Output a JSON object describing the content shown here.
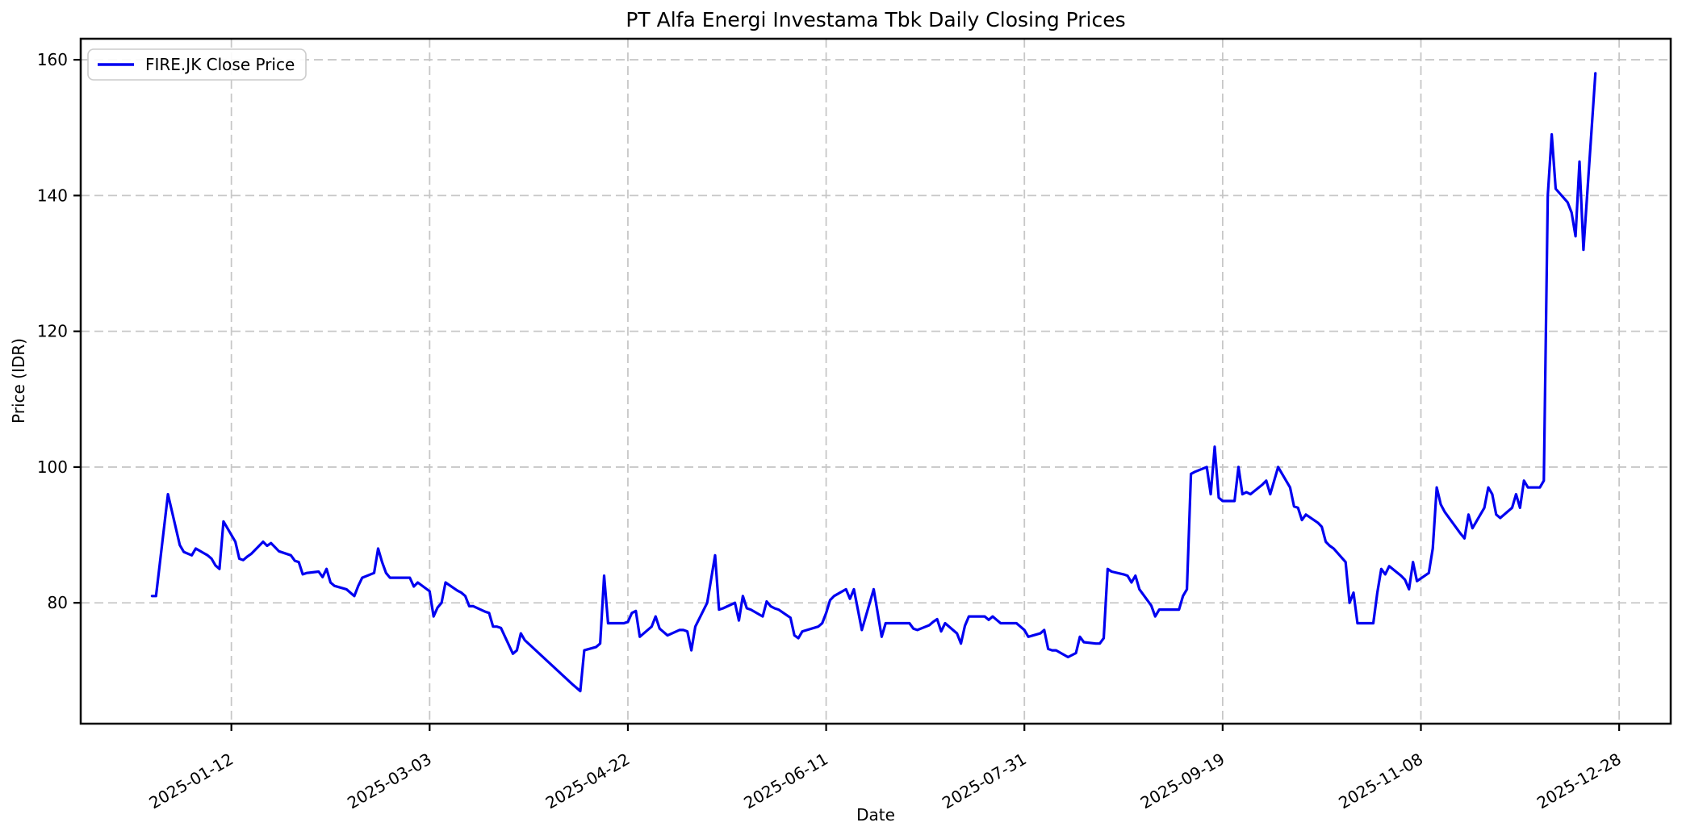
{
  "chart_data": {
    "type": "line",
    "title": "PT Alfa Energi Investama Tbk Daily Closing Prices",
    "xlabel": "Date",
    "ylabel": "Price (IDR)",
    "legend_label": "FIRE.JK Close Price",
    "legend_position": "upper left",
    "grid": true,
    "line_color": "#0000f0",
    "grid_color": "#c7c7c7",
    "spine_color": "#000000",
    "background_color": "#ffffff",
    "x_tick_labels": [
      "2025-01-12",
      "2025-03-03",
      "2025-04-22",
      "2025-06-11",
      "2025-07-31",
      "2025-09-19",
      "2025-11-08",
      "2025-12-28"
    ],
    "y_tick_labels": [
      80,
      100,
      120,
      140,
      160
    ],
    "xlim": [
      "2024-12-05",
      "2026-01-10"
    ],
    "ylim": [
      62.2,
      163.1
    ],
    "series": [
      {
        "name": "FIRE.JK Close Price",
        "color": "#0000f0",
        "points": [
          [
            "2024-12-23",
            81
          ],
          [
            "2024-12-24",
            81
          ],
          [
            "2024-12-27",
            96
          ],
          [
            "2024-12-30",
            88.5
          ],
          [
            "2024-12-31",
            87.5
          ],
          [
            "2025-01-02",
            87
          ],
          [
            "2025-01-03",
            88
          ],
          [
            "2025-01-06",
            87
          ],
          [
            "2025-01-07",
            86.5
          ],
          [
            "2025-01-08",
            85.5
          ],
          [
            "2025-01-09",
            85
          ],
          [
            "2025-01-10",
            92
          ],
          [
            "2025-01-13",
            89
          ],
          [
            "2025-01-14",
            86.5
          ],
          [
            "2025-01-15",
            86.3
          ],
          [
            "2025-01-16",
            86.8
          ],
          [
            "2025-01-17",
            87.2
          ],
          [
            "2025-01-20",
            89
          ],
          [
            "2025-01-21",
            88.4
          ],
          [
            "2025-01-22",
            88.8
          ],
          [
            "2025-01-23",
            88.2
          ],
          [
            "2025-01-24",
            87.6
          ],
          [
            "2025-01-27",
            87
          ],
          [
            "2025-01-28",
            86.2
          ],
          [
            "2025-01-29",
            86
          ],
          [
            "2025-01-30",
            84.2
          ],
          [
            "2025-01-31",
            84.4
          ],
          [
            "2025-02-03",
            84.6
          ],
          [
            "2025-02-04",
            83.8
          ],
          [
            "2025-02-05",
            85
          ],
          [
            "2025-02-06",
            83
          ],
          [
            "2025-02-07",
            82.5
          ],
          [
            "2025-02-10",
            82
          ],
          [
            "2025-02-11",
            81.5
          ],
          [
            "2025-02-12",
            81
          ],
          [
            "2025-02-13",
            82.5
          ],
          [
            "2025-02-14",
            83.7
          ],
          [
            "2025-02-17",
            84.4
          ],
          [
            "2025-02-18",
            88
          ],
          [
            "2025-02-19",
            86
          ],
          [
            "2025-02-20",
            84.4
          ],
          [
            "2025-02-21",
            83.7
          ],
          [
            "2025-02-24",
            83.7
          ],
          [
            "2025-02-25",
            83.7
          ],
          [
            "2025-02-26",
            83.7
          ],
          [
            "2025-02-27",
            82.4
          ],
          [
            "2025-02-28",
            83
          ],
          [
            "2025-03-03",
            81.7
          ],
          [
            "2025-03-04",
            78
          ],
          [
            "2025-03-05",
            79.3
          ],
          [
            "2025-03-06",
            80
          ],
          [
            "2025-03-07",
            83
          ],
          [
            "2025-03-10",
            81.8
          ],
          [
            "2025-03-11",
            81.5
          ],
          [
            "2025-03-12",
            81
          ],
          [
            "2025-03-13",
            79.5
          ],
          [
            "2025-03-14",
            79.5
          ],
          [
            "2025-03-17",
            78.7
          ],
          [
            "2025-03-18",
            78.5
          ],
          [
            "2025-03-19",
            76.5
          ],
          [
            "2025-03-20",
            76.5
          ],
          [
            "2025-03-21",
            76.3
          ],
          [
            "2025-03-24",
            72.5
          ],
          [
            "2025-03-25",
            73
          ],
          [
            "2025-03-26",
            75.5
          ],
          [
            "2025-03-27",
            74.5
          ],
          [
            "2025-04-08",
            68
          ],
          [
            "2025-04-09",
            67.5
          ],
          [
            "2025-04-10",
            67
          ],
          [
            "2025-04-11",
            73
          ],
          [
            "2025-04-14",
            73.5
          ],
          [
            "2025-04-15",
            74
          ],
          [
            "2025-04-16",
            84
          ],
          [
            "2025-04-17",
            77
          ],
          [
            "2025-04-21",
            77
          ],
          [
            "2025-04-22",
            77.2
          ],
          [
            "2025-04-23",
            78.5
          ],
          [
            "2025-04-24",
            78.8
          ],
          [
            "2025-04-25",
            75
          ],
          [
            "2025-04-28",
            76.5
          ],
          [
            "2025-04-29",
            78
          ],
          [
            "2025-04-30",
            76.2
          ],
          [
            "2025-05-02",
            75.2
          ],
          [
            "2025-05-05",
            76
          ],
          [
            "2025-05-06",
            76
          ],
          [
            "2025-05-07",
            75.8
          ],
          [
            "2025-05-08",
            73
          ],
          [
            "2025-05-09",
            76.5
          ],
          [
            "2025-05-12",
            80
          ],
          [
            "2025-05-13",
            83.5
          ],
          [
            "2025-05-14",
            87
          ],
          [
            "2025-05-15",
            79
          ],
          [
            "2025-05-16",
            79.2
          ],
          [
            "2025-05-19",
            80
          ],
          [
            "2025-05-20",
            77.4
          ],
          [
            "2025-05-21",
            81
          ],
          [
            "2025-05-22",
            79.2
          ],
          [
            "2025-05-23",
            79
          ],
          [
            "2025-05-26",
            78
          ],
          [
            "2025-05-27",
            80.2
          ],
          [
            "2025-05-28",
            79.5
          ],
          [
            "2025-05-29",
            79.2
          ],
          [
            "2025-05-30",
            79
          ],
          [
            "2025-06-02",
            77.8
          ],
          [
            "2025-06-03",
            75.2
          ],
          [
            "2025-06-04",
            74.8
          ],
          [
            "2025-06-05",
            75.8
          ],
          [
            "2025-06-09",
            76.5
          ],
          [
            "2025-06-10",
            77
          ],
          [
            "2025-06-11",
            78.5
          ],
          [
            "2025-06-12",
            80.4
          ],
          [
            "2025-06-13",
            81
          ],
          [
            "2025-06-16",
            82
          ],
          [
            "2025-06-17",
            80.6
          ],
          [
            "2025-06-18",
            82
          ],
          [
            "2025-06-19",
            79
          ],
          [
            "2025-06-20",
            76
          ],
          [
            "2025-06-23",
            82
          ],
          [
            "2025-06-24",
            78.5
          ],
          [
            "2025-06-25",
            75
          ],
          [
            "2025-06-26",
            77
          ],
          [
            "2025-06-30",
            77
          ],
          [
            "2025-07-01",
            77
          ],
          [
            "2025-07-02",
            77
          ],
          [
            "2025-07-03",
            76.2
          ],
          [
            "2025-07-04",
            76
          ],
          [
            "2025-07-07",
            76.7
          ],
          [
            "2025-07-08",
            77.2
          ],
          [
            "2025-07-09",
            77.6
          ],
          [
            "2025-07-10",
            75.8
          ],
          [
            "2025-07-11",
            77
          ],
          [
            "2025-07-14",
            75.5
          ],
          [
            "2025-07-15",
            74
          ],
          [
            "2025-07-16",
            76.6
          ],
          [
            "2025-07-17",
            78
          ],
          [
            "2025-07-18",
            78
          ],
          [
            "2025-07-21",
            78
          ],
          [
            "2025-07-22",
            77.5
          ],
          [
            "2025-07-23",
            78
          ],
          [
            "2025-07-24",
            77.5
          ],
          [
            "2025-07-25",
            77
          ],
          [
            "2025-07-28",
            77
          ],
          [
            "2025-07-29",
            77
          ],
          [
            "2025-07-30",
            76.5
          ],
          [
            "2025-07-31",
            76
          ],
          [
            "2025-08-01",
            75
          ],
          [
            "2025-08-04",
            75.5
          ],
          [
            "2025-08-05",
            76
          ],
          [
            "2025-08-06",
            73.2
          ],
          [
            "2025-08-07",
            73
          ],
          [
            "2025-08-08",
            73
          ],
          [
            "2025-08-11",
            72
          ],
          [
            "2025-08-12",
            72.3
          ],
          [
            "2025-08-13",
            72.6
          ],
          [
            "2025-08-14",
            75
          ],
          [
            "2025-08-15",
            74.2
          ],
          [
            "2025-08-18",
            74
          ],
          [
            "2025-08-19",
            74
          ],
          [
            "2025-08-20",
            74.8
          ],
          [
            "2025-08-21",
            85
          ],
          [
            "2025-08-22",
            84.6
          ],
          [
            "2025-08-25",
            84.2
          ],
          [
            "2025-08-26",
            84
          ],
          [
            "2025-08-27",
            83
          ],
          [
            "2025-08-28",
            84
          ],
          [
            "2025-08-29",
            82
          ],
          [
            "2025-09-01",
            79.6
          ],
          [
            "2025-09-02",
            78
          ],
          [
            "2025-09-03",
            79
          ],
          [
            "2025-09-04",
            79
          ],
          [
            "2025-09-05",
            79
          ],
          [
            "2025-09-08",
            79
          ],
          [
            "2025-09-09",
            81
          ],
          [
            "2025-09-10",
            82
          ],
          [
            "2025-09-11",
            99
          ],
          [
            "2025-09-12",
            99.3
          ],
          [
            "2025-09-15",
            100
          ],
          [
            "2025-09-16",
            96
          ],
          [
            "2025-09-17",
            103
          ],
          [
            "2025-09-18",
            95.5
          ],
          [
            "2025-09-19",
            95
          ],
          [
            "2025-09-22",
            95
          ],
          [
            "2025-09-23",
            100
          ],
          [
            "2025-09-24",
            96
          ],
          [
            "2025-09-25",
            96.3
          ],
          [
            "2025-09-26",
            96
          ],
          [
            "2025-09-29",
            97.4
          ],
          [
            "2025-09-30",
            98
          ],
          [
            "2025-10-01",
            96
          ],
          [
            "2025-10-02",
            98
          ],
          [
            "2025-10-03",
            100
          ],
          [
            "2025-10-06",
            97
          ],
          [
            "2025-10-07",
            94.2
          ],
          [
            "2025-10-08",
            94
          ],
          [
            "2025-10-09",
            92.2
          ],
          [
            "2025-10-10",
            93
          ],
          [
            "2025-10-13",
            91.8
          ],
          [
            "2025-10-14",
            91.2
          ],
          [
            "2025-10-15",
            89
          ],
          [
            "2025-10-16",
            88.4
          ],
          [
            "2025-10-17",
            88
          ],
          [
            "2025-10-20",
            86
          ],
          [
            "2025-10-21",
            80
          ],
          [
            "2025-10-22",
            81.5
          ],
          [
            "2025-10-23",
            77
          ],
          [
            "2025-10-24",
            77
          ],
          [
            "2025-10-27",
            77
          ],
          [
            "2025-10-28",
            81.5
          ],
          [
            "2025-10-29",
            85
          ],
          [
            "2025-10-30",
            84.2
          ],
          [
            "2025-10-31",
            85.4
          ],
          [
            "2025-11-03",
            84
          ],
          [
            "2025-11-04",
            83.4
          ],
          [
            "2025-11-05",
            82
          ],
          [
            "2025-11-06",
            86
          ],
          [
            "2025-11-07",
            83.2
          ],
          [
            "2025-11-10",
            84.4
          ],
          [
            "2025-11-11",
            88
          ],
          [
            "2025-11-12",
            97
          ],
          [
            "2025-11-13",
            94.5
          ],
          [
            "2025-11-14",
            93.4
          ],
          [
            "2025-11-17",
            91
          ],
          [
            "2025-11-18",
            90.2
          ],
          [
            "2025-11-19",
            89.5
          ],
          [
            "2025-11-20",
            93
          ],
          [
            "2025-11-21",
            91
          ],
          [
            "2025-11-24",
            94
          ],
          [
            "2025-11-25",
            97
          ],
          [
            "2025-11-26",
            96
          ],
          [
            "2025-11-27",
            93
          ],
          [
            "2025-11-28",
            92.5
          ],
          [
            "2025-12-01",
            94
          ],
          [
            "2025-12-02",
            96
          ],
          [
            "2025-12-03",
            94
          ],
          [
            "2025-12-04",
            98
          ],
          [
            "2025-12-05",
            97
          ],
          [
            "2025-12-08",
            97
          ],
          [
            "2025-12-09",
            98
          ],
          [
            "2025-12-10",
            140
          ],
          [
            "2025-12-11",
            149
          ],
          [
            "2025-12-12",
            141
          ],
          [
            "2025-12-15",
            139
          ],
          [
            "2025-12-16",
            137.5
          ],
          [
            "2025-12-17",
            134
          ],
          [
            "2025-12-18",
            145
          ],
          [
            "2025-12-19",
            132
          ],
          [
            "2025-12-22",
            158
          ]
        ]
      }
    ]
  }
}
